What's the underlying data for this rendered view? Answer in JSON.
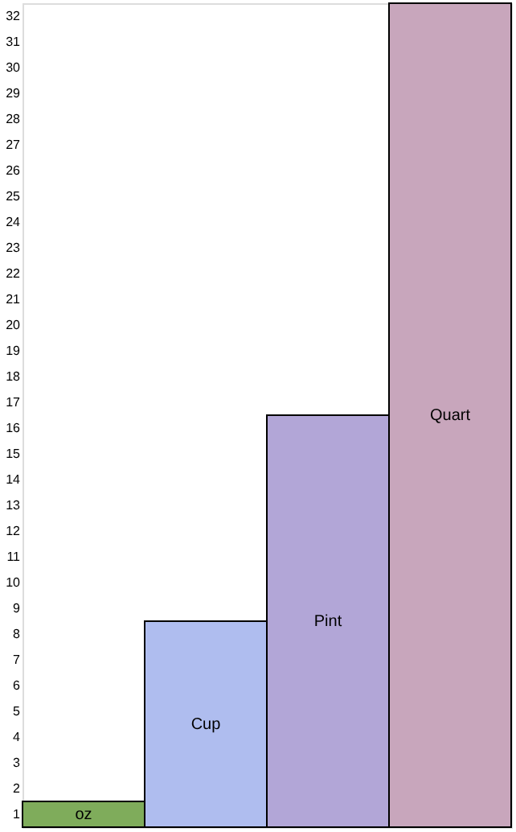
{
  "chart_data": {
    "type": "bar",
    "categories": [
      "oz",
      "Cup",
      "Pint",
      "Quart"
    ],
    "values": [
      1,
      8,
      16,
      32
    ],
    "colors": [
      "#7fac5b",
      "#afbdef",
      "#b2a6d7",
      "#c8a6bc"
    ],
    "ylim": [
      0,
      32
    ],
    "yticks": [
      {
        "value": 0.5,
        "label": "1"
      },
      {
        "value": 1.5,
        "label": "2"
      },
      {
        "value": 2.5,
        "label": "3"
      },
      {
        "value": 3.5,
        "label": "4"
      },
      {
        "value": 4.5,
        "label": "5"
      },
      {
        "value": 5.5,
        "label": "6"
      },
      {
        "value": 6.5,
        "label": "7"
      },
      {
        "value": 7.5,
        "label": "8"
      },
      {
        "value": 8.5,
        "label": "9"
      },
      {
        "value": 9.5,
        "label": "10"
      },
      {
        "value": 10.5,
        "label": "11"
      },
      {
        "value": 11.5,
        "label": "12"
      },
      {
        "value": 12.5,
        "label": "13"
      },
      {
        "value": 13.5,
        "label": "14"
      },
      {
        "value": 14.5,
        "label": "15"
      },
      {
        "value": 15.5,
        "label": "16"
      },
      {
        "value": 16.5,
        "label": "17"
      },
      {
        "value": 17.5,
        "label": "18"
      },
      {
        "value": 18.5,
        "label": "19"
      },
      {
        "value": 19.5,
        "label": "20"
      },
      {
        "value": 20.5,
        "label": "21"
      },
      {
        "value": 21.5,
        "label": "22"
      },
      {
        "value": 22.5,
        "label": "23"
      },
      {
        "value": 23.5,
        "label": "24"
      },
      {
        "value": 24.5,
        "label": "25"
      },
      {
        "value": 25.5,
        "label": "26"
      },
      {
        "value": 26.5,
        "label": "27"
      },
      {
        "value": 27.5,
        "label": "28"
      },
      {
        "value": 28.5,
        "label": "29"
      },
      {
        "value": 29.5,
        "label": "30"
      },
      {
        "value": 30.5,
        "label": "31"
      },
      {
        "value": 31.5,
        "label": "32"
      }
    ],
    "tick_labels": "y",
    "grid": false
  }
}
